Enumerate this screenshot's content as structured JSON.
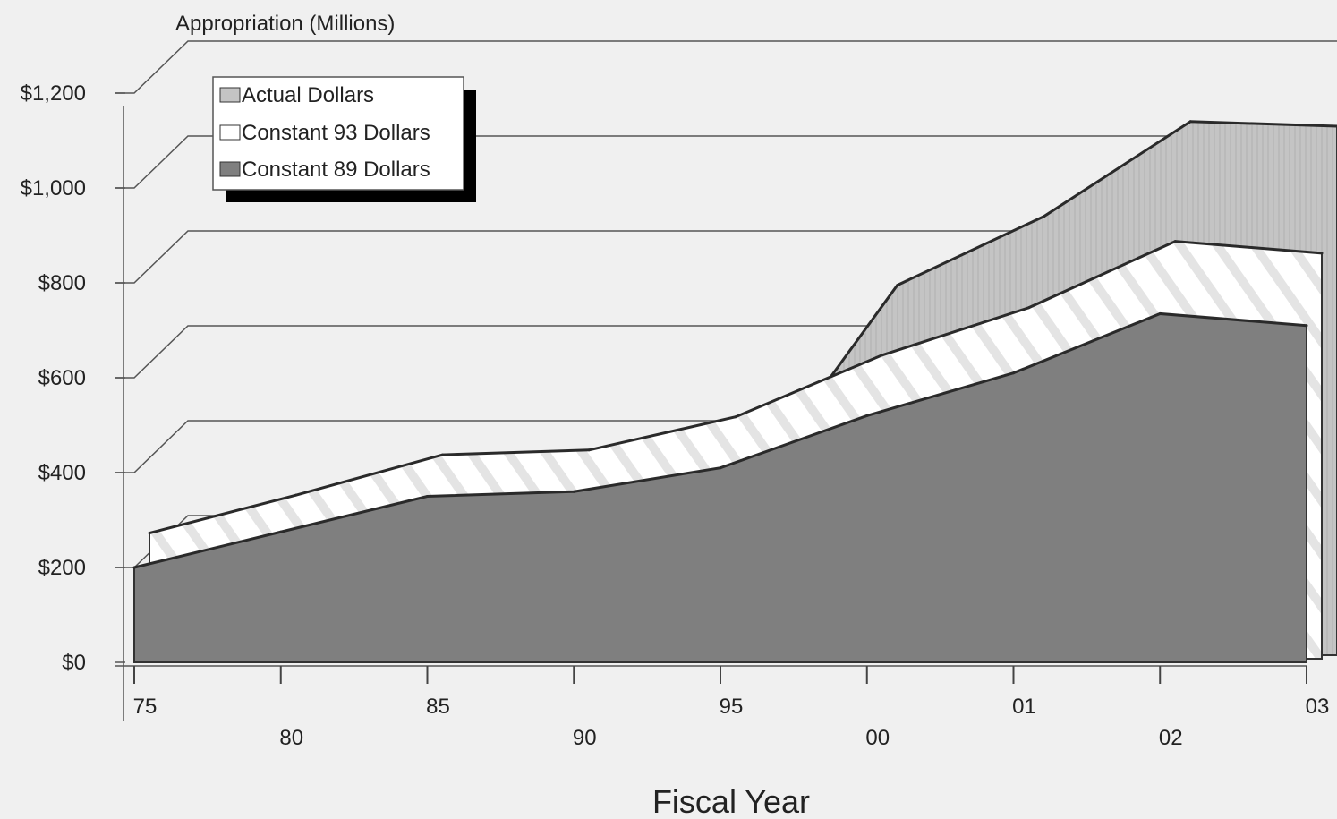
{
  "chart_data": {
    "type": "area",
    "ylabel": "Appropriation (Millions)",
    "xlabel": "Fiscal Year",
    "ylim": [
      0,
      1200
    ],
    "y_ticks": [
      "$0",
      "$200",
      "$400",
      "$600",
      "$800",
      "$1,000",
      "$1,200"
    ],
    "categories": [
      "75",
      "80",
      "85",
      "90",
      "95",
      "00",
      "01",
      "02",
      "03"
    ],
    "grid": true,
    "legend_position": "top-left",
    "series": [
      {
        "name": "Actual Dollars",
        "color": "#c4c4c4",
        "values": [
          80,
          170,
          270,
          280,
          355,
          780,
          925,
          1125,
          1115
        ]
      },
      {
        "name": "Constant 93 Dollars",
        "color": "#ffffff",
        "values": [
          265,
          345,
          430,
          440,
          510,
          640,
          740,
          880,
          855
        ]
      },
      {
        "name": "Constant 89 Dollars",
        "color": "#7f7f7f",
        "values": [
          200,
          275,
          350,
          360,
          410,
          520,
          610,
          735,
          710
        ]
      }
    ]
  }
}
